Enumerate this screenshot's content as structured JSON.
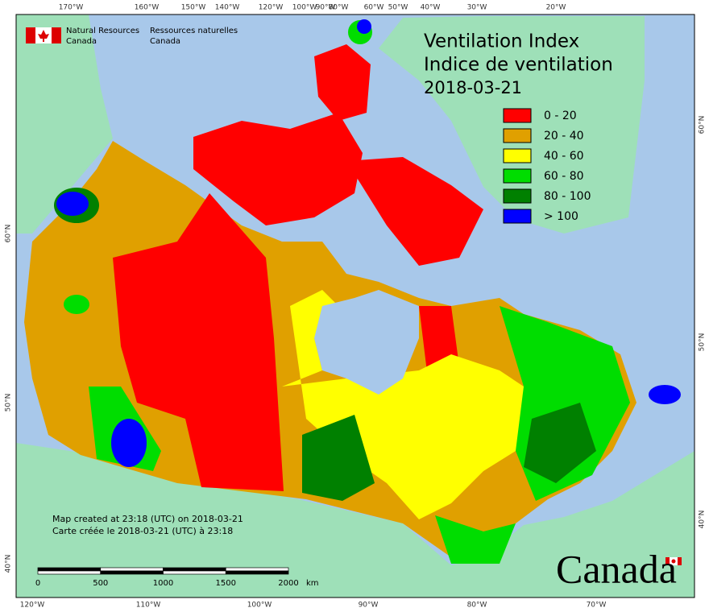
{
  "header": {
    "agency_en": [
      "Natural Resources",
      "Canada"
    ],
    "agency_fr": [
      "Ressources naturelles",
      "Canada"
    ]
  },
  "title": [
    "Ventilation Index",
    "Indice de ventilation",
    "2018-03-21"
  ],
  "legend": [
    {
      "label": "0 - 20",
      "color": "#ff0000"
    },
    {
      "label": "20 - 40",
      "color": "#e0a000"
    },
    {
      "label": "40 - 60",
      "color": "#ffff00"
    },
    {
      "label": "60 - 80",
      "color": "#00dd00"
    },
    {
      "label": "80 - 100",
      "color": "#008000"
    },
    {
      "label": "> 100",
      "color": "#0000ff"
    }
  ],
  "top_labels": [
    "170°W",
    "160°W",
    "150°W",
    "140°W",
    "120°W",
    "100°W",
    "90°W",
    "80°W",
    "60°W",
    "50°W",
    "40°W",
    "30°W",
    "20°W"
  ],
  "bottom_labels": [
    "120°W",
    "110°W",
    "100°W",
    "90°W",
    "80°W",
    "70°W"
  ],
  "left_labels": [
    "60°N",
    "50°N",
    "40°N"
  ],
  "right_labels": [
    "60°N",
    "50°N",
    "40°N"
  ],
  "credits": [
    "Map created at 23:18 (UTC) on 2018-03-21",
    "Carte créée le 2018-03-21 (UTC) à 23:18"
  ],
  "scale": {
    "ticks": [
      "0",
      "500",
      "1000",
      "1500",
      "2000"
    ],
    "unit": "km"
  },
  "wordmark": "Canada"
}
